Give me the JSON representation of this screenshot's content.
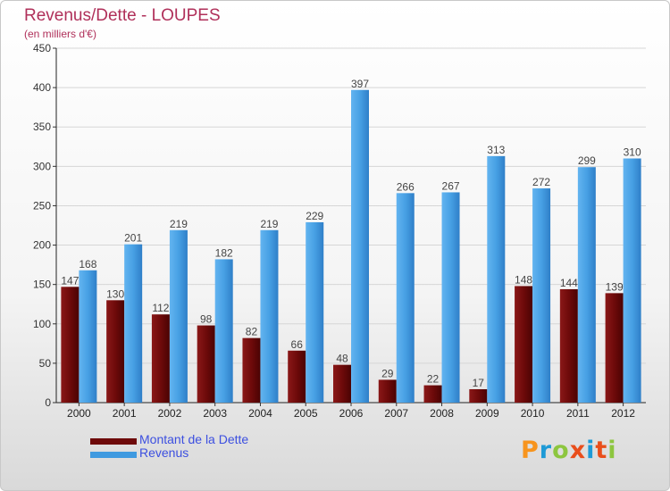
{
  "title": "Revenus/Dette - LOUPES",
  "subtitle": "(en milliers d'€)",
  "logo": {
    "letters": [
      "P",
      "r",
      "o",
      "x",
      "i",
      "t",
      "i"
    ],
    "colors": [
      "#f7941d",
      "#1e9ad6",
      "#8dc63f",
      "#e94e1b",
      "#1e9ad6",
      "#e94e1b",
      "#8dc63f"
    ]
  },
  "chart_data": {
    "type": "bar",
    "categories": [
      "2000",
      "2001",
      "2002",
      "2003",
      "2004",
      "2005",
      "2006",
      "2007",
      "2008",
      "2009",
      "2010",
      "2011",
      "2012"
    ],
    "series": [
      {
        "name": "Montant de la Dette",
        "color": "#6e0a0a",
        "values": [
          147,
          130,
          112,
          98,
          82,
          66,
          48,
          29,
          22,
          17,
          148,
          144,
          139
        ]
      },
      {
        "name": "Revenus",
        "color": "#3f9ae0",
        "values": [
          168,
          201,
          219,
          182,
          219,
          229,
          397,
          266,
          267,
          313,
          272,
          299,
          310
        ]
      }
    ],
    "ylim": [
      0,
      450
    ],
    "yticks": [
      0,
      50,
      100,
      150,
      200,
      250,
      300,
      350,
      400,
      450
    ],
    "grid": true,
    "legend_position": "bottom-left"
  }
}
